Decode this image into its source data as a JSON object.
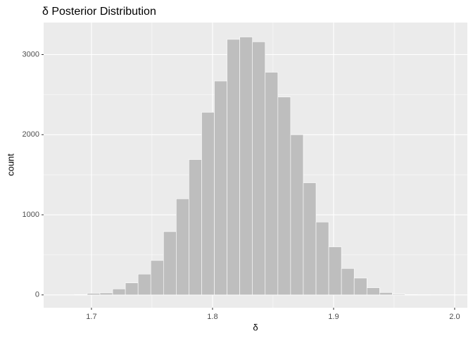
{
  "chart_data": {
    "type": "histogram",
    "title": "δ Posterior Distribution",
    "x_label": "δ",
    "y_label": "count",
    "bins": [
      1.686,
      1.6965,
      1.707,
      1.7175,
      1.728,
      1.7385,
      1.749,
      1.7595,
      1.77,
      1.7805,
      1.791,
      1.8015,
      1.812,
      1.8225,
      1.833,
      1.8435,
      1.854,
      1.8645,
      1.875,
      1.8855,
      1.896,
      1.9065,
      1.917,
      1.9275,
      1.938,
      1.9485,
      1.959,
      1.9695,
      1.98,
      1.9905
    ],
    "values": [
      5,
      20,
      25,
      75,
      150,
      260,
      430,
      790,
      1200,
      1690,
      2280,
      2670,
      3190,
      3220,
      3160,
      2780,
      2470,
      2000,
      1400,
      910,
      600,
      330,
      210,
      90,
      30,
      10,
      5,
      3,
      1
    ],
    "color": "#bebebe",
    "xlim": [
      1.6605,
      2.0105
    ],
    "xticks": [
      1.7,
      1.8,
      1.9,
      {
        "value": 2.0,
        "label": "2.0"
      }
    ],
    "ylim": [
      -160,
      3400
    ],
    "yticks": [
      0,
      1000,
      2000,
      3000
    ],
    "grid": true
  }
}
